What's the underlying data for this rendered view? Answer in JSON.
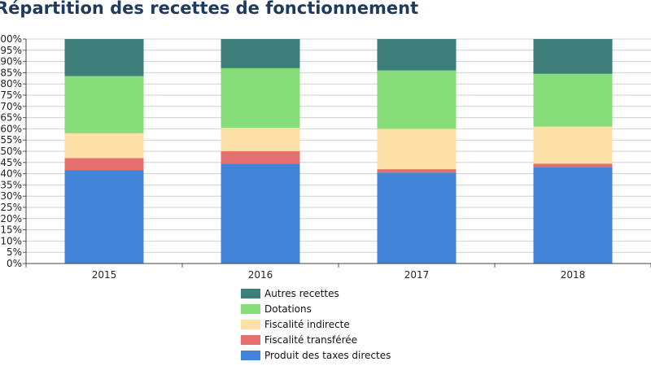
{
  "chart_data": {
    "type": "bar",
    "stacked": true,
    "percent": true,
    "title": "Répartition des recettes de fonctionnement",
    "categories": [
      "2015",
      "2016",
      "2017",
      "2018"
    ],
    "y_ticks": [
      "0%",
      "5%",
      "10%",
      "15%",
      "20%",
      "25%",
      "30%",
      "35%",
      "40%",
      "45%",
      "50%",
      "55%",
      "60%",
      "65%",
      "70%",
      "75%",
      "80%",
      "85%",
      "90%",
      "95%",
      "100%"
    ],
    "ylim": [
      0,
      100
    ],
    "grid": true,
    "legend_position": "bottom",
    "series": [
      {
        "name": "Produit des taxes directes",
        "color": "#4184d8",
        "values": [
          41.5,
          44.5,
          40.5,
          43.0
        ]
      },
      {
        "name": "Fiscalité transférée",
        "color": "#e56f6e",
        "values": [
          5.5,
          5.5,
          1.5,
          1.5
        ]
      },
      {
        "name": "Fiscalité indirecte",
        "color": "#fde0a7",
        "values": [
          11.0,
          10.5,
          18.0,
          16.5
        ]
      },
      {
        "name": "Dotations",
        "color": "#87dd7a",
        "values": [
          25.5,
          26.5,
          26.0,
          23.5
        ]
      },
      {
        "name": "Autres recettes",
        "color": "#3e7f7c",
        "values": [
          16.5,
          13.0,
          14.0,
          15.5
        ]
      }
    ]
  }
}
